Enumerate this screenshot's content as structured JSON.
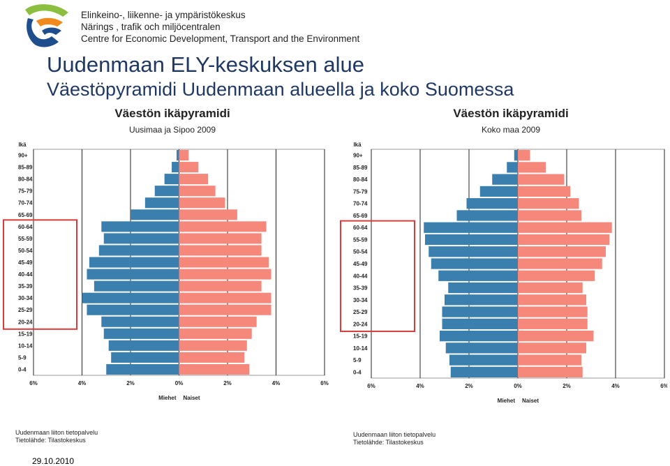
{
  "header": {
    "logo_icon": "ely-centre-logo-icon",
    "org_lines": [
      "Elinkeino-, liikenne- ja ympäristökeskus",
      "Närings , trafik och miljöcentralen",
      "Centre for Economic Development, Transport and the Environment"
    ]
  },
  "slide": {
    "title": "Uudenmaan ELY-keskuksen alue",
    "subtitle": "Väestöpyramidi Uudenmaan alueella ja koko Suomessa",
    "date": "29.10.2010"
  },
  "sources": [
    {
      "line1": "Uudenmaan liiton tietopalvelu",
      "line2": "Tietolähde: Tilastokeskus"
    },
    {
      "line1": "Uudenmaan liiton tietopalvelu",
      "line2": "Tietolähde: Tilastokeskus"
    }
  ],
  "colors": {
    "men": "#3a7fae",
    "women": "#f6877b",
    "highlight": "#d93a3a"
  },
  "chart_data": [
    {
      "type": "bar",
      "title": "Väestön ikäpyramidi",
      "subtitle": "Uusimaa ja Sipoo 2009",
      "ylabel": "Ikä",
      "categories": [
        "90+",
        "85-89",
        "80-84",
        "75-79",
        "70-74",
        "65-69",
        "60-64",
        "55-59",
        "50-54",
        "45-49",
        "40-44",
        "35-39",
        "30-34",
        "25-29",
        "20-24",
        "15-19",
        "10-14",
        "5-9",
        "0-4"
      ],
      "series": [
        {
          "name": "Miehet",
          "values": [
            0.1,
            0.3,
            0.6,
            1.0,
            1.4,
            2.0,
            3.2,
            3.1,
            3.3,
            3.7,
            3.8,
            3.5,
            4.0,
            3.8,
            3.2,
            3.1,
            2.9,
            2.8,
            3.0
          ]
        },
        {
          "name": "Naiset",
          "values": [
            0.4,
            0.8,
            1.2,
            1.5,
            1.9,
            2.4,
            3.6,
            3.4,
            3.4,
            3.7,
            3.8,
            3.4,
            3.8,
            3.8,
            3.2,
            3.0,
            2.8,
            2.7,
            2.9
          ]
        }
      ],
      "xlim": [
        -6,
        6
      ],
      "xticks": [
        "6%",
        "4%",
        "2%",
        "0%",
        "2%",
        "4%",
        "6%"
      ],
      "grid": true,
      "highlight": [
        "60-64",
        "20-24"
      ]
    },
    {
      "type": "bar",
      "title": "Väestön ikäpyramidi",
      "subtitle": "Koko maa 2009",
      "ylabel": "Ikä",
      "categories": [
        "90+",
        "85-89",
        "80-84",
        "75-79",
        "70-74",
        "65-69",
        "60-64",
        "55-59",
        "50-54",
        "45-49",
        "40-44",
        "35-39",
        "30-34",
        "25-29",
        "20-24",
        "15-19",
        "10-14",
        "5-9",
        "0-4"
      ],
      "series": [
        {
          "name": "Miehet",
          "values": [
            0.15,
            0.45,
            1.05,
            1.55,
            2.1,
            2.5,
            3.85,
            3.8,
            3.65,
            3.55,
            3.25,
            2.85,
            3.0,
            3.1,
            3.1,
            3.2,
            2.95,
            2.8,
            2.75
          ]
        },
        {
          "name": "Naiset",
          "values": [
            0.5,
            1.15,
            1.9,
            2.15,
            2.5,
            2.6,
            3.85,
            3.75,
            3.6,
            3.45,
            3.15,
            2.65,
            2.8,
            2.85,
            2.85,
            3.1,
            2.8,
            2.6,
            2.65
          ]
        }
      ],
      "xlim": [
        -6,
        6
      ],
      "xticks": [
        "6%",
        "4%",
        "2%",
        "0%",
        "2%",
        "4%",
        "6%"
      ],
      "grid": true,
      "highlight": [
        "60-64",
        "20-24"
      ]
    }
  ]
}
